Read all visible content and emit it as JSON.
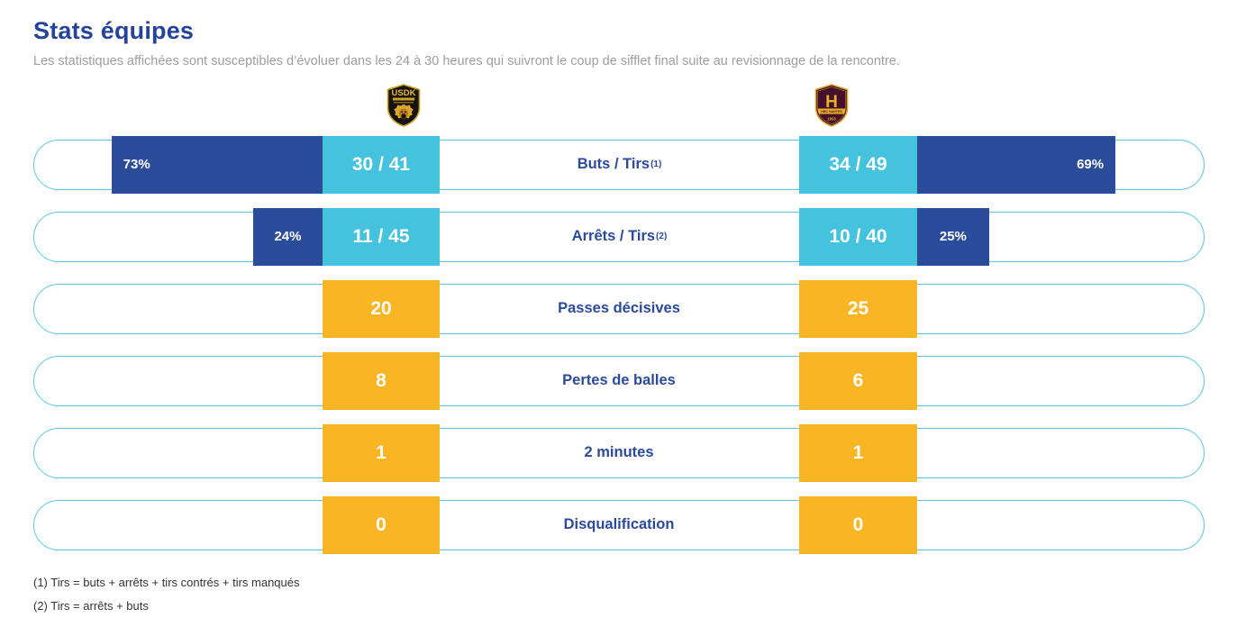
{
  "header": {
    "title": "Stats équipes",
    "subtitle": "Les statistiques affichées sont susceptibles d’évoluer dans les 24 à 30 heures qui suivront le coup de sifflet final suite au revisionnage de la rencontre."
  },
  "teams": {
    "home": {
      "name": "USDK Dunkerque",
      "logo_text": "USDK"
    },
    "away": {
      "name": "HBC Nantes",
      "logo_text": "HBC NANTES",
      "logo_letter": "H",
      "logo_year": "1953"
    }
  },
  "stats": [
    {
      "label": "Buts / Tirs",
      "sup": "(1)",
      "style": "ratio",
      "home": {
        "value": "30 / 41",
        "pct": 73,
        "pct_label": "73%"
      },
      "away": {
        "value": "34 / 49",
        "pct": 69,
        "pct_label": "69%"
      }
    },
    {
      "label": "Arrêts / Tirs",
      "sup": "(2)",
      "style": "ratio",
      "home": {
        "value": "11 / 45",
        "pct": 24,
        "pct_label": "24%"
      },
      "away": {
        "value": "10 / 40",
        "pct": 25,
        "pct_label": "25%"
      }
    },
    {
      "label": "Passes décisives",
      "sup": "",
      "style": "count",
      "home": {
        "value": "20"
      },
      "away": {
        "value": "25"
      }
    },
    {
      "label": "Pertes de balles",
      "sup": "",
      "style": "count",
      "home": {
        "value": "8"
      },
      "away": {
        "value": "6"
      }
    },
    {
      "label": "2 minutes",
      "sup": "",
      "style": "count",
      "home": {
        "value": "1"
      },
      "away": {
        "value": "1"
      }
    },
    {
      "label": "Disqualification",
      "sup": "",
      "style": "count",
      "home": {
        "value": "0"
      },
      "away": {
        "value": "0"
      }
    }
  ],
  "footnotes": [
    "(1) Tirs = buts + arrêts + tirs contrés + tirs manqués",
    "(2) Tirs = arrêts + buts"
  ],
  "colors": {
    "bar_dark_blue": "#2B4B9B",
    "bar_cyan": "#45C2DE",
    "bar_yellow": "#FAB524",
    "pill_border": "#5BC6DF",
    "title_blue": "#24439B",
    "label_blue": "#2B4A9B",
    "subtitle_gray": "#9E9E9E",
    "footnote_gray": "#333333"
  },
  "chart_data": {
    "type": "bar",
    "title": "Stats équipes",
    "categories": [
      "Buts / Tirs (1)",
      "Arrêts / Tirs (2)",
      "Passes décisives",
      "Pertes de balles",
      "2 minutes",
      "Disqualification"
    ],
    "series": [
      {
        "name": "USDK Dunkerque",
        "display": [
          "30 / 41",
          "11 / 45",
          "20",
          "8",
          "1",
          "0"
        ],
        "pct_values": [
          73,
          24,
          null,
          null,
          null,
          null
        ]
      },
      {
        "name": "HBC Nantes",
        "display": [
          "34 / 49",
          "10 / 40",
          "25",
          "6",
          "1",
          "0"
        ],
        "pct_values": [
          69,
          25,
          null,
          null,
          null,
          null
        ]
      }
    ],
    "xlabel": "",
    "ylabel": "",
    "legend_position": "logos-above-value-columns",
    "grid": false,
    "notes": "Rows 1-2 show ratio value plus percentage bar (bar length = pct of half-row width, anchored at value box, growing outward); rows 3-6 show raw counts in yellow boxes."
  }
}
